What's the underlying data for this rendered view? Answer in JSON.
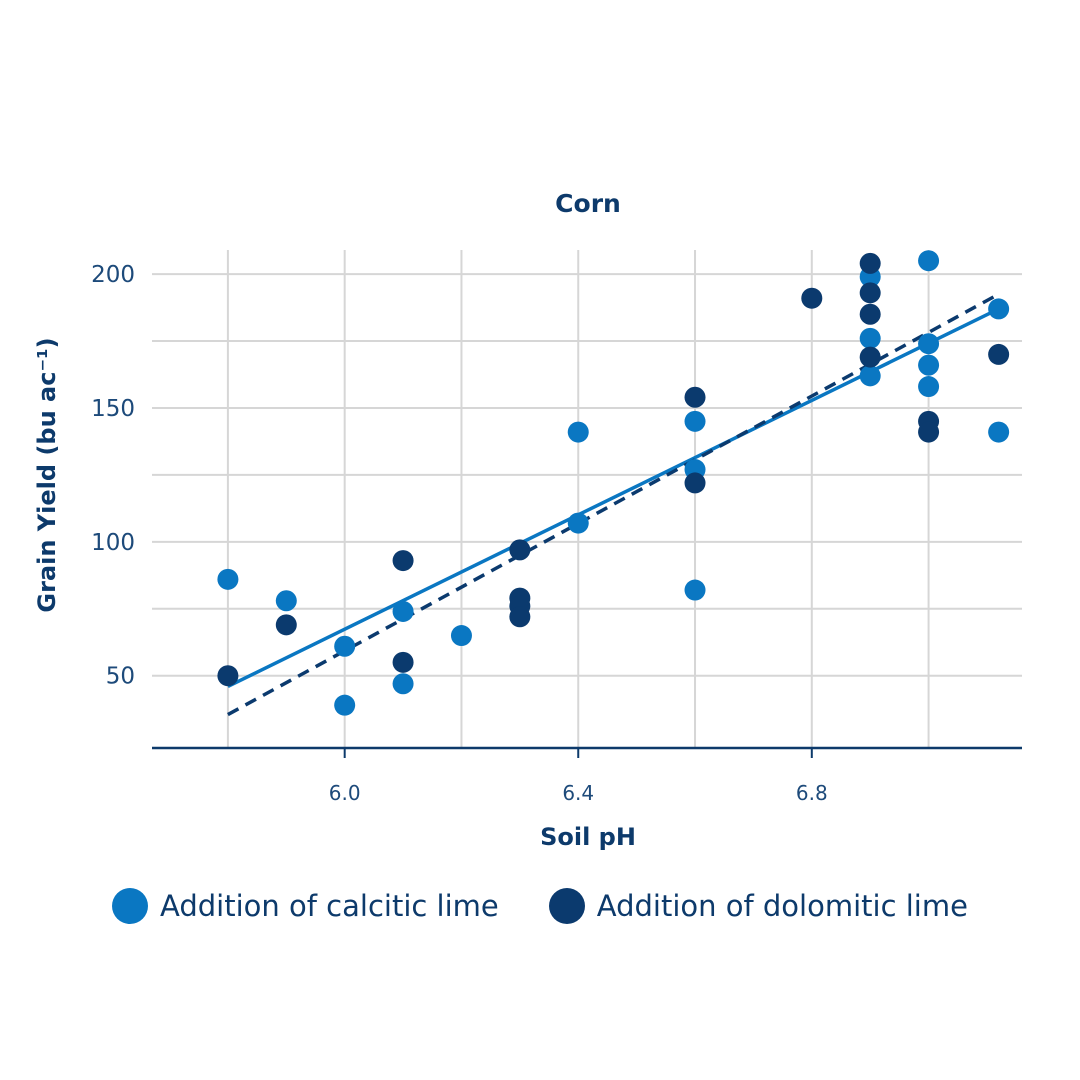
{
  "chart_data": {
    "type": "scatter",
    "title": "Corn",
    "xlabel": "Soil pH",
    "ylabel": "Grain Yield (bu ac⁻¹)",
    "xlim": [
      5.67,
      7.16
    ],
    "ylim": [
      23,
      209
    ],
    "x_ticks": [
      6.0,
      6.4,
      6.8
    ],
    "x_tick_labels": [
      "6.0",
      "6.4",
      "6.8"
    ],
    "x_grid": [
      5.8,
      6.0,
      6.2,
      6.4,
      6.6,
      6.8,
      7.0
    ],
    "y_ticks": [
      50,
      100,
      150,
      200
    ],
    "y_tick_labels": [
      "50",
      "100",
      "150",
      "200"
    ],
    "y_grid": [
      50,
      75,
      100,
      125,
      150,
      175,
      200
    ],
    "grid": true,
    "legend_position": "bottom",
    "series": [
      {
        "name": "Addition of calcitic lime",
        "color": "#0a77c2",
        "trendline": {
          "style": "solid",
          "x": [
            5.8,
            7.12
          ],
          "y": [
            46,
            187
          ]
        },
        "points": [
          [
            5.8,
            86
          ],
          [
            5.9,
            78
          ],
          [
            6.0,
            61
          ],
          [
            6.0,
            39
          ],
          [
            6.1,
            74
          ],
          [
            6.1,
            47
          ],
          [
            6.2,
            65
          ],
          [
            6.4,
            107
          ],
          [
            6.4,
            141
          ],
          [
            6.6,
            145
          ],
          [
            6.6,
            127
          ],
          [
            6.6,
            82
          ],
          [
            6.9,
            199
          ],
          [
            6.9,
            176
          ],
          [
            6.9,
            162
          ],
          [
            7.0,
            205
          ],
          [
            7.0,
            174
          ],
          [
            7.0,
            166
          ],
          [
            7.0,
            158
          ],
          [
            7.12,
            187
          ],
          [
            7.12,
            141
          ]
        ]
      },
      {
        "name": "Addition of dolomitic lime",
        "color": "#0b3a6e",
        "trendline": {
          "style": "dashed",
          "x": [
            5.8,
            7.12
          ],
          "y": [
            35.5,
            192.5
          ]
        },
        "points": [
          [
            5.8,
            50
          ],
          [
            5.9,
            69
          ],
          [
            6.1,
            93
          ],
          [
            6.1,
            55
          ],
          [
            6.3,
            97
          ],
          [
            6.3,
            79
          ],
          [
            6.3,
            76
          ],
          [
            6.3,
            72
          ],
          [
            6.6,
            154
          ],
          [
            6.6,
            122
          ],
          [
            6.8,
            191
          ],
          [
            6.9,
            204
          ],
          [
            6.9,
            193
          ],
          [
            6.9,
            185
          ],
          [
            6.9,
            169
          ],
          [
            7.0,
            145
          ],
          [
            7.0,
            141
          ],
          [
            7.12,
            170
          ]
        ]
      }
    ]
  }
}
